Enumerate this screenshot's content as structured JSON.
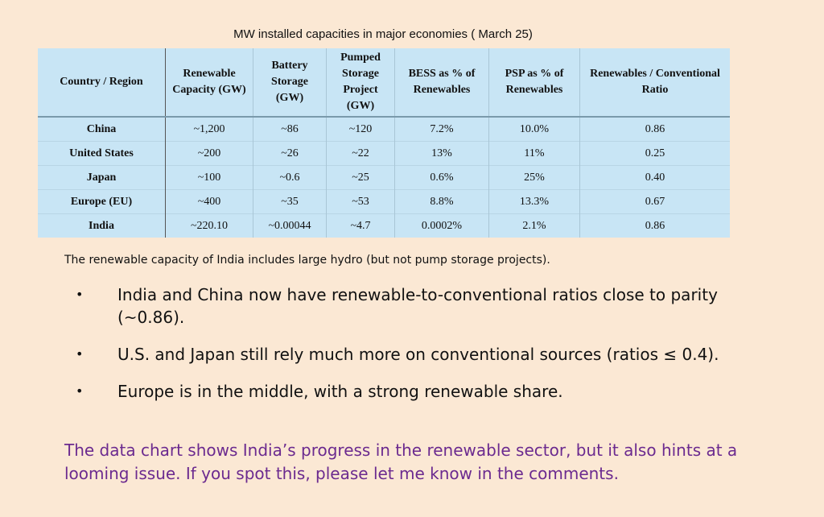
{
  "caption": "MW installed capacities in major economies ( March 25)",
  "table": {
    "headers": [
      "Country / Region",
      "Renewable Capacity (GW)",
      "Battery Storage (GW)",
      "Pumped Storage Project (GW)",
      "BESS as % of Renewables",
      "PSP as % of Renewables",
      "Renewables / Conventional Ratio"
    ],
    "rows": [
      [
        "China",
        "~1,200",
        "~86",
        "~120",
        "7.2%",
        "10.0%",
        "0.86"
      ],
      [
        "United States",
        "~200",
        "~26",
        "~22",
        "13%",
        "11%",
        "0.25"
      ],
      [
        "Japan",
        "~100",
        "~0.6",
        "~25",
        "0.6%",
        "25%",
        "0.40"
      ],
      [
        "Europe (EU)",
        "~400",
        "~35",
        "~53",
        "8.8%",
        "13.3%",
        "0.67"
      ],
      [
        "India",
        "~220.10",
        "~0.00044",
        "~4.7",
        "0.0002%",
        "2.1%",
        "0.86"
      ]
    ]
  },
  "note": "The renewable capacity of India includes large hydro (but not pump storage projects).",
  "bullets": [
    "India and China now have renewable-to-conventional ratios close to parity (~0.86).",
    "U.S. and Japan still rely much more on conventional sources (ratios ≤ 0.4).",
    "Europe is in the middle, with a strong renewable share."
  ],
  "bullet_glyph": "•",
  "closing": "The data chart shows India’s progress in the renewable sector, but it also hints at a looming issue. If you spot this, please let me know in the comments.",
  "colors": {
    "background": "#fbe8d4",
    "table_fill": "#c8e5f5",
    "closing_text": "#6b2a8f"
  }
}
